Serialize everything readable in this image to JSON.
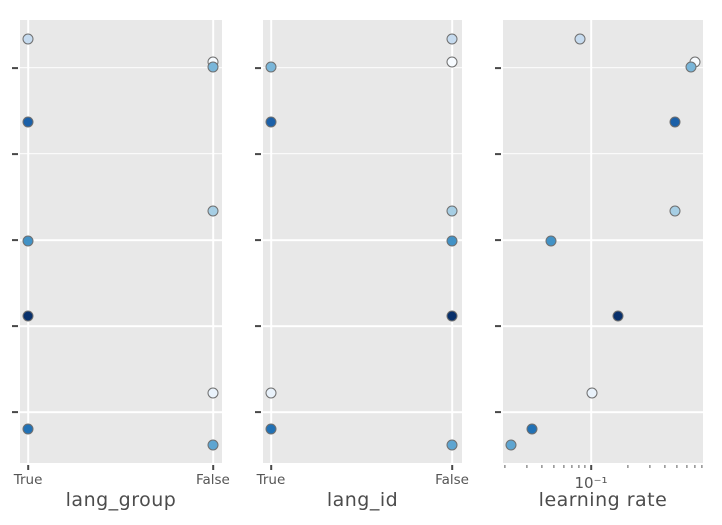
{
  "figure": {
    "background": "#ffffff",
    "panel_background": "#e8e8e8",
    "grid_color": "#ffffff",
    "tick_color": "#484848",
    "tick_label_color": "#555555",
    "axis_label_color": "#4c4c4c"
  },
  "chart_data": {
    "type": "scatter",
    "title": "",
    "description": "Three-panel hyperparameter slice plot; each dot is one trial, shaded light-to-dark blue, sharing unlabeled y-axis rows across panels.",
    "y_axis": {
      "label": "",
      "tick_labels": [],
      "grid_frac": [
        10.8,
        30.2,
        49.7,
        69.1,
        88.5
      ]
    },
    "panels": [
      {
        "xlabel": "lang_group",
        "x_type": "categorical",
        "x_ticks": [
          {
            "label": "True",
            "frac": 4
          },
          {
            "label": "False",
            "frac": 95.5
          }
        ],
        "minor_ticks": [],
        "points": [
          {
            "x_value": "True",
            "x_frac": 4,
            "y_frac": 4.3,
            "color": "#c6dbef"
          },
          {
            "x_value": "False",
            "x_frac": 95.5,
            "y_frac": 9.5,
            "color": "#f7fbff"
          },
          {
            "x_value": "False",
            "x_frac": 95.5,
            "y_frac": 10.6,
            "color": "#7ab6d9"
          },
          {
            "x_value": "True",
            "x_frac": 4,
            "y_frac": 23.0,
            "color": "#1b60a8"
          },
          {
            "x_value": "False",
            "x_frac": 95.5,
            "y_frac": 43.1,
            "color": "#a6cee4"
          },
          {
            "x_value": "True",
            "x_frac": 4,
            "y_frac": 49.9,
            "color": "#4292c6"
          },
          {
            "x_value": "True",
            "x_frac": 4,
            "y_frac": 66.8,
            "color": "#08306b"
          },
          {
            "x_value": "False",
            "x_frac": 95.5,
            "y_frac": 84.2,
            "color": "#e9f2fb"
          },
          {
            "x_value": "True",
            "x_frac": 4,
            "y_frac": 92.3,
            "color": "#2171b5"
          },
          {
            "x_value": "False",
            "x_frac": 95.5,
            "y_frac": 95.9,
            "color": "#5ea5d1"
          }
        ]
      },
      {
        "xlabel": "lang_id",
        "x_type": "categorical",
        "x_ticks": [
          {
            "label": "True",
            "frac": 4
          },
          {
            "label": "False",
            "frac": 95
          }
        ],
        "minor_ticks": [],
        "points": [
          {
            "x_value": "False",
            "x_frac": 95,
            "y_frac": 4.3,
            "color": "#c6dbef"
          },
          {
            "x_value": "False",
            "x_frac": 95,
            "y_frac": 9.5,
            "color": "#f7fbff"
          },
          {
            "x_value": "True",
            "x_frac": 4,
            "y_frac": 10.6,
            "color": "#7ab6d9"
          },
          {
            "x_value": "True",
            "x_frac": 4,
            "y_frac": 23.0,
            "color": "#1b60a8"
          },
          {
            "x_value": "False",
            "x_frac": 95,
            "y_frac": 43.1,
            "color": "#a6cee4"
          },
          {
            "x_value": "False",
            "x_frac": 95,
            "y_frac": 49.9,
            "color": "#4292c6"
          },
          {
            "x_value": "False",
            "x_frac": 95,
            "y_frac": 66.8,
            "color": "#08306b"
          },
          {
            "x_value": "True",
            "x_frac": 4,
            "y_frac": 84.2,
            "color": "#e9f2fb"
          },
          {
            "x_value": "True",
            "x_frac": 4,
            "y_frac": 92.3,
            "color": "#2171b5"
          },
          {
            "x_value": "False",
            "x_frac": 95,
            "y_frac": 95.9,
            "color": "#5ea5d1"
          }
        ]
      },
      {
        "xlabel": "learning rate",
        "x_type": "log",
        "x_ticks": [
          {
            "label": "10⁻¹",
            "frac": 44
          }
        ],
        "minor_ticks": [
          1,
          12,
          19.5,
          25.5,
          30.5,
          34.5,
          38,
          41,
          62.5,
          73.5,
          81,
          87,
          92,
          96,
          99.5
        ],
        "points": [
          {
            "x_value": 0.081,
            "x_frac": 38.5,
            "y_frac": 4.3,
            "color": "#c6dbef"
          },
          {
            "x_value": 0.67,
            "x_frac": 96,
            "y_frac": 9.5,
            "color": "#f7fbff"
          },
          {
            "x_value": 0.63,
            "x_frac": 94,
            "y_frac": 10.6,
            "color": "#7ab6d9"
          },
          {
            "x_value": 0.48,
            "x_frac": 86,
            "y_frac": 23.0,
            "color": "#1b60a8"
          },
          {
            "x_value": 0.48,
            "x_frac": 86,
            "y_frac": 43.1,
            "color": "#a6cee4"
          },
          {
            "x_value": 0.047,
            "x_frac": 24,
            "y_frac": 49.9,
            "color": "#4292c6"
          },
          {
            "x_value": 0.17,
            "x_frac": 57.5,
            "y_frac": 66.8,
            "color": "#08306b"
          },
          {
            "x_value": 0.1,
            "x_frac": 44.5,
            "y_frac": 84.2,
            "color": "#e9f2fb"
          },
          {
            "x_value": 0.033,
            "x_frac": 14.5,
            "y_frac": 92.3,
            "color": "#2171b5"
          },
          {
            "x_value": 0.021,
            "x_frac": 4,
            "y_frac": 95.9,
            "color": "#5ea5d1"
          }
        ]
      }
    ]
  }
}
